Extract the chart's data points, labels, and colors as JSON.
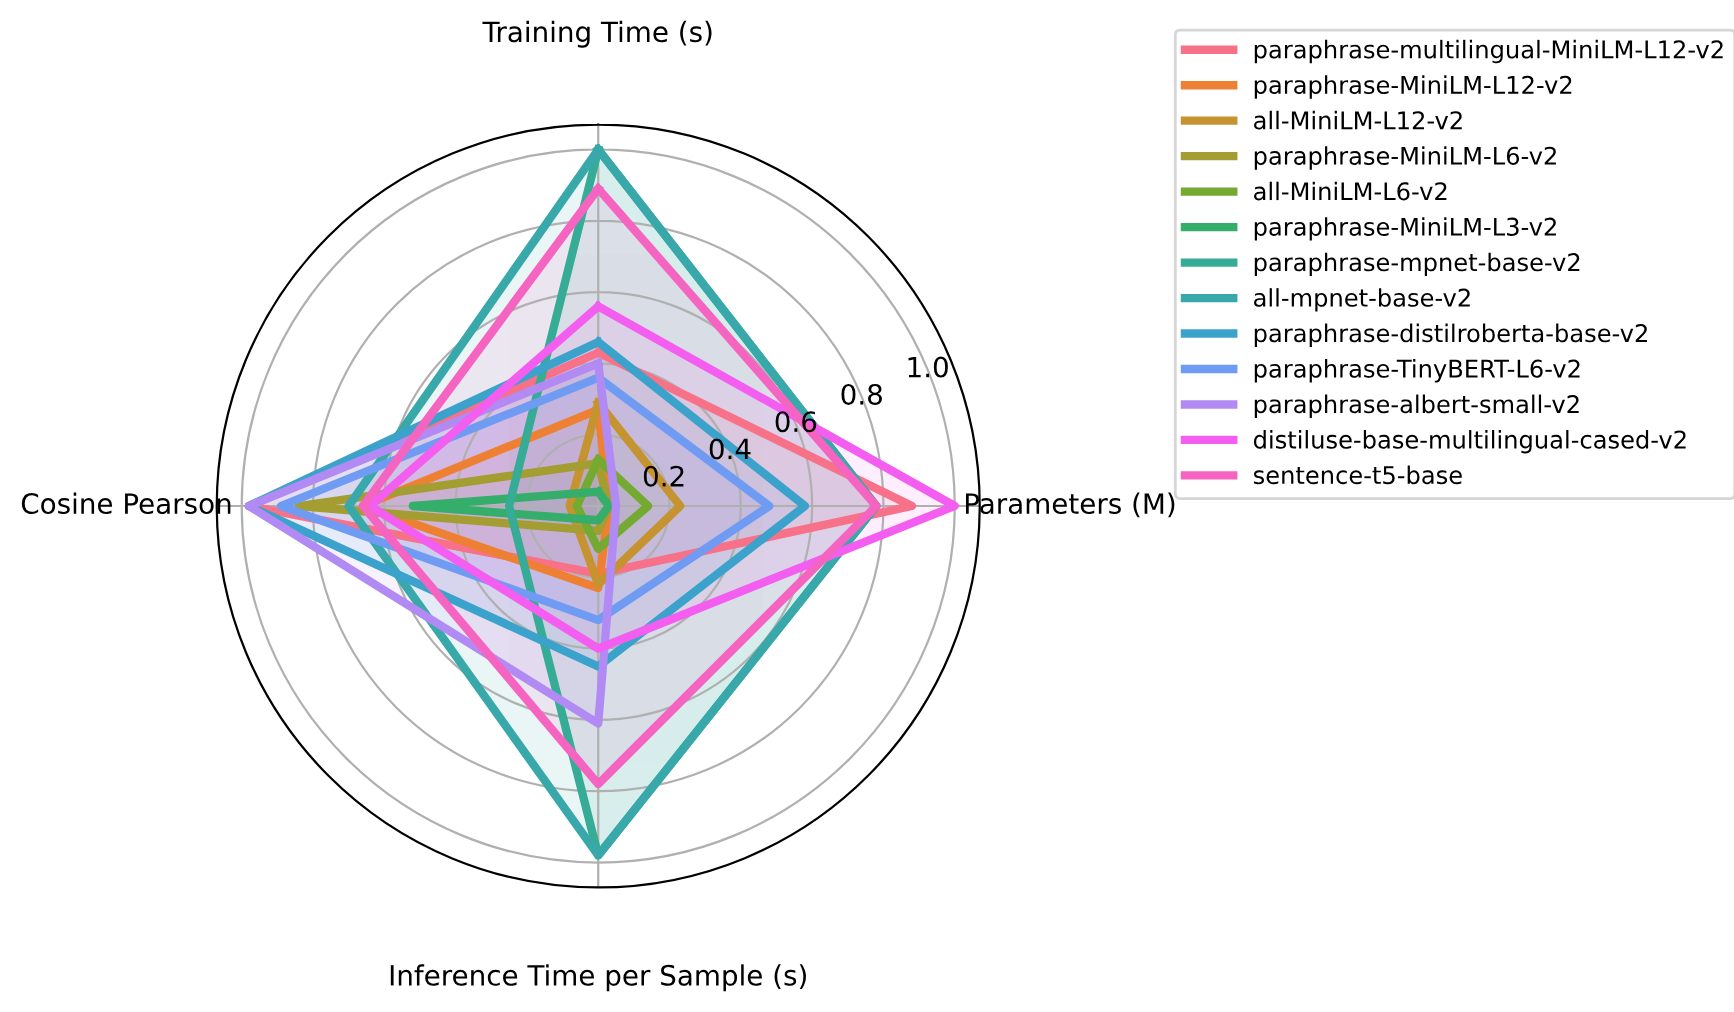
{
  "chart_data": {
    "type": "radar",
    "categories": [
      "Training Time (s)",
      "Parameters (M)",
      "Inference Time per Sample (s)",
      "Cosine Pearson"
    ],
    "ylim": [
      0,
      1.07
    ],
    "yticks": [
      0.2,
      0.4,
      0.6,
      0.8,
      {
        "value": 1,
        "label": "1.0"
      }
    ],
    "grid": true,
    "legend": "top right",
    "series": [
      {
        "name": "paraphrase-multilingual-MiniLM-L12-v2",
        "color": "#f77189",
        "values": [
          0.43,
          0.88,
          0.19,
          0.98
        ]
      },
      {
        "name": "paraphrase-MiniLM-L12-v2",
        "color": "#ee8034",
        "values": [
          0.27,
          0.03,
          0.23,
          0.66
        ]
      },
      {
        "name": "all-MiniLM-L12-v2",
        "color": "#c5932f",
        "values": [
          0.29,
          0.23,
          0.22,
          0.08
        ]
      },
      {
        "name": "paraphrase-MiniLM-L6-v2",
        "color": "#a39d32",
        "values": [
          0.12,
          0.03,
          0.07,
          0.84
        ]
      },
      {
        "name": "all-MiniLM-L6-v2",
        "color": "#74aa32",
        "values": [
          0.13,
          0.14,
          0.12,
          0.06
        ]
      },
      {
        "name": "paraphrase-MiniLM-L3-v2",
        "color": "#34ae6a",
        "values": [
          0.04,
          0.03,
          0.04,
          0.52
        ]
      },
      {
        "name": "paraphrase-mpnet-base-v2",
        "color": "#36ab95",
        "values": [
          1.0,
          0.78,
          0.98,
          0.25
        ]
      },
      {
        "name": "all-mpnet-base-v2",
        "color": "#38a8aa",
        "values": [
          1.0,
          0.78,
          0.98,
          0.7
        ]
      },
      {
        "name": "paraphrase-distilroberta-base-v2",
        "color": "#3ba3cb",
        "values": [
          0.46,
          0.58,
          0.45,
          0.98
        ]
      },
      {
        "name": "paraphrase-TinyBERT-L6-v2",
        "color": "#6f9bf3",
        "values": [
          0.36,
          0.48,
          0.32,
          0.89
        ]
      },
      {
        "name": "paraphrase-albert-small-v2",
        "color": "#b18bf3",
        "values": [
          0.4,
          0.05,
          0.61,
          0.98
        ]
      },
      {
        "name": "distiluse-base-multilingual-cased-v2",
        "color": "#f45ef0",
        "values": [
          0.56,
          1.0,
          0.4,
          0.64
        ]
      },
      {
        "name": "sentence-t5-base",
        "color": "#f564c0",
        "values": [
          0.89,
          0.78,
          0.78,
          0.66
        ]
      }
    ]
  }
}
